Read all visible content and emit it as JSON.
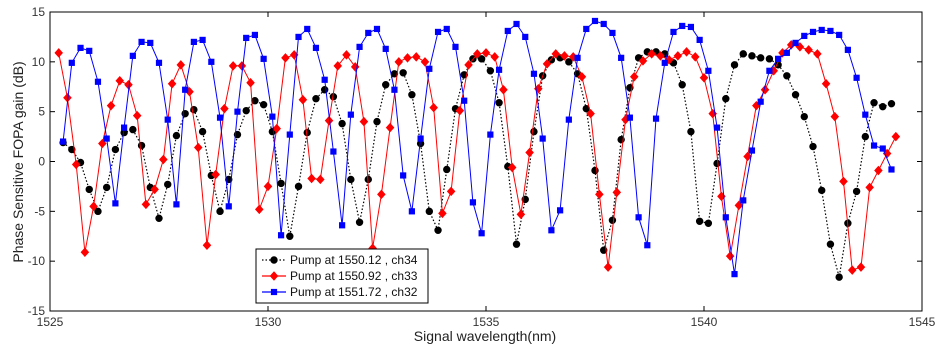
{
  "chart_data": {
    "type": "line",
    "title": "",
    "xlabel": "Signal wavelength(nm)",
    "ylabel": "Phase Sensitive FOPA gain (dB)",
    "xlim": [
      1525,
      1545
    ],
    "ylim": [
      -15,
      15
    ],
    "xticks": [
      1525,
      1530,
      1535,
      1540,
      1545
    ],
    "yticks": [
      -15,
      -10,
      -5,
      0,
      5,
      10,
      15
    ],
    "grid": false,
    "legend_position": "bottom-left",
    "series": [
      {
        "name": "Pump at 1550.12 , ch34",
        "color": "#000000",
        "line_style": "dotted",
        "marker": "circle",
        "x": [
          1525.3,
          1525.5,
          1525.7,
          1525.9,
          1526.1,
          1526.3,
          1526.5,
          1526.7,
          1526.9,
          1527.1,
          1527.3,
          1527.5,
          1527.7,
          1527.9,
          1528.1,
          1528.3,
          1528.5,
          1528.7,
          1528.9,
          1529.1,
          1529.3,
          1529.5,
          1529.7,
          1529.9,
          1530.1,
          1530.3,
          1530.5,
          1530.7,
          1530.9,
          1531.1,
          1531.3,
          1531.5,
          1531.7,
          1531.9,
          1532.1,
          1532.3,
          1532.5,
          1532.7,
          1532.9,
          1533.1,
          1533.3,
          1533.5,
          1533.7,
          1533.9,
          1534.1,
          1534.3,
          1534.5,
          1534.7,
          1534.9,
          1535.1,
          1535.3,
          1535.5,
          1535.7,
          1535.9,
          1536.1,
          1536.3,
          1536.5,
          1536.7,
          1536.9,
          1537.1,
          1537.3,
          1537.5,
          1537.7,
          1537.9,
          1538.1,
          1538.3,
          1538.5,
          1538.7,
          1538.9,
          1539.1,
          1539.3,
          1539.5,
          1539.7,
          1539.9,
          1540.1,
          1540.3,
          1540.5,
          1540.7,
          1540.9,
          1541.1,
          1541.3,
          1541.5,
          1541.7,
          1541.9,
          1542.1,
          1542.3,
          1542.5,
          1542.7,
          1542.9,
          1543.1,
          1543.3,
          1543.5,
          1543.7,
          1543.9,
          1544.1,
          1544.3
        ],
        "y": [
          1.9,
          1.2,
          -0.1,
          -2.8,
          -5.0,
          -2.6,
          1.2,
          2.9,
          3.2,
          1.6,
          -2.6,
          -5.7,
          -2.3,
          2.6,
          4.8,
          5.2,
          3.0,
          -1.4,
          -5.0,
          -1.8,
          2.7,
          5.1,
          6.1,
          5.7,
          3.0,
          -2.2,
          -7.5,
          -2.5,
          2.9,
          6.3,
          7.2,
          6.5,
          3.8,
          -1.8,
          -6.1,
          -1.8,
          4.0,
          7.7,
          8.8,
          8.9,
          6.7,
          1.8,
          -5.0,
          -6.9,
          -0.8,
          5.3,
          8.7,
          10.3,
          10.3,
          9.1,
          5.9,
          -0.5,
          -8.3,
          -3.8,
          3.0,
          8.6,
          10.2,
          10.4,
          10.0,
          8.8,
          5.3,
          -0.9,
          -8.9,
          -5.9,
          2.2,
          7.4,
          10.4,
          11.0,
          11.0,
          10.8,
          9.9,
          7.7,
          3.0,
          -6.0,
          -6.2,
          -0.2,
          6.3,
          9.7,
          10.8,
          10.6,
          10.4,
          10.3,
          9.7,
          8.6,
          6.7,
          4.5,
          1.5,
          -2.9,
          -8.3,
          -11.6,
          -6.2,
          -3.0,
          2.5,
          5.9,
          5.5,
          5.8
        ]
      },
      {
        "name": "Pump at 1550.92 , ch33",
        "color": "#ff0000",
        "line_style": "solid",
        "marker": "diamond",
        "x": [
          1525.2,
          1525.4,
          1525.6,
          1525.8,
          1526.0,
          1526.2,
          1526.4,
          1526.6,
          1526.8,
          1527.0,
          1527.2,
          1527.4,
          1527.6,
          1527.8,
          1528.0,
          1528.2,
          1528.4,
          1528.6,
          1528.8,
          1529.0,
          1529.2,
          1529.4,
          1529.6,
          1529.8,
          1530.0,
          1530.2,
          1530.4,
          1530.6,
          1530.8,
          1531.0,
          1531.2,
          1531.4,
          1531.6,
          1531.8,
          1532.0,
          1532.2,
          1532.4,
          1532.6,
          1532.8,
          1533.0,
          1533.2,
          1533.4,
          1533.6,
          1533.8,
          1534.0,
          1534.2,
          1534.4,
          1534.6,
          1534.8,
          1535.0,
          1535.2,
          1535.4,
          1535.6,
          1535.8,
          1536.0,
          1536.2,
          1536.4,
          1536.6,
          1536.8,
          1537.0,
          1537.2,
          1537.4,
          1537.6,
          1537.8,
          1538.0,
          1538.2,
          1538.4,
          1538.6,
          1538.8,
          1539.0,
          1539.2,
          1539.4,
          1539.6,
          1539.8,
          1540.0,
          1540.2,
          1540.4,
          1540.6,
          1540.8,
          1541.0,
          1541.2,
          1541.4,
          1541.6,
          1541.8,
          1542.0,
          1542.2,
          1542.4,
          1542.6,
          1542.8,
          1543.0,
          1543.2,
          1543.4,
          1543.6,
          1543.8,
          1544.0,
          1544.2,
          1544.4
        ],
        "y": [
          10.9,
          6.4,
          -0.3,
          -9.1,
          -4.5,
          1.8,
          5.6,
          8.1,
          7.7,
          4.6,
          -4.3,
          -2.8,
          0.2,
          7.8,
          9.7,
          7.0,
          1.4,
          -8.4,
          -1.3,
          5.3,
          9.6,
          9.6,
          7.9,
          -4.8,
          -2.5,
          3.3,
          10.4,
          10.7,
          6.2,
          -1.7,
          -1.8,
          4.1,
          9.6,
          10.7,
          9.5,
          4.0,
          -8.7,
          -3.3,
          3.4,
          10.0,
          10.4,
          10.5,
          10.0,
          5.4,
          -5.2,
          -3.0,
          5.1,
          9.7,
          10.8,
          10.9,
          10.5,
          7.2,
          -0.6,
          -5.3,
          0.9,
          7.3,
          9.8,
          10.8,
          10.6,
          10.5,
          8.5,
          4.8,
          -3.3,
          -10.6,
          -3.1,
          4.2,
          8.5,
          10.1,
          10.8,
          10.6,
          10.2,
          10.6,
          11.0,
          10.5,
          8.4,
          4.8,
          -3.5,
          -9.5,
          -4.4,
          0.5,
          5.6,
          7.2,
          9.1,
          10.9,
          11.7,
          11.5,
          11.2,
          10.8,
          7.8,
          4.5,
          -2.0,
          -10.9,
          -10.6,
          -2.6,
          -0.9,
          0.8,
          2.5
        ]
      },
      {
        "name": "Pump at 1551.72 , ch32",
        "color": "#0000ff",
        "line_style": "solid",
        "marker": "square",
        "x": [
          1525.3,
          1525.5,
          1525.7,
          1525.9,
          1526.1,
          1526.3,
          1526.5,
          1526.7,
          1526.9,
          1527.1,
          1527.3,
          1527.5,
          1527.7,
          1527.9,
          1528.1,
          1528.3,
          1528.5,
          1528.7,
          1528.9,
          1529.1,
          1529.3,
          1529.5,
          1529.7,
          1529.9,
          1530.1,
          1530.3,
          1530.5,
          1530.7,
          1530.9,
          1531.1,
          1531.3,
          1531.5,
          1531.7,
          1531.9,
          1532.1,
          1532.3,
          1532.5,
          1532.7,
          1532.9,
          1533.1,
          1533.3,
          1533.5,
          1533.7,
          1533.9,
          1534.1,
          1534.3,
          1534.5,
          1534.7,
          1534.9,
          1535.1,
          1535.3,
          1535.5,
          1535.7,
          1535.9,
          1536.1,
          1536.3,
          1536.5,
          1536.7,
          1536.9,
          1537.1,
          1537.3,
          1537.5,
          1537.7,
          1537.9,
          1538.1,
          1538.3,
          1538.5,
          1538.7,
          1538.9,
          1539.1,
          1539.3,
          1539.5,
          1539.7,
          1539.9,
          1540.1,
          1540.3,
          1540.5,
          1540.7,
          1540.9,
          1541.1,
          1541.3,
          1541.5,
          1541.7,
          1541.9,
          1542.1,
          1542.3,
          1542.5,
          1542.7,
          1542.9,
          1543.1,
          1543.3,
          1543.5,
          1543.7,
          1543.9,
          1544.1,
          1544.3
        ],
        "y": [
          2.0,
          9.9,
          11.4,
          11.1,
          8.0,
          2.3,
          -4.2,
          3.4,
          10.6,
          12.0,
          11.9,
          9.9,
          4.2,
          -4.3,
          7.2,
          12.0,
          12.2,
          10.0,
          4.4,
          -4.5,
          5.0,
          12.4,
          12.7,
          10.3,
          4.5,
          -7.4,
          2.7,
          12.5,
          13.3,
          11.4,
          8.2,
          1.0,
          -6.4,
          4.7,
          11.5,
          12.9,
          13.3,
          11.3,
          7.2,
          -1.4,
          -5.0,
          2.3,
          9.3,
          13.0,
          13.3,
          11.5,
          6.1,
          -4.1,
          -7.2,
          2.7,
          9.2,
          13.1,
          13.8,
          12.5,
          8.8,
          2.3,
          -6.9,
          -4.9,
          4.2,
          10.4,
          13.3,
          14.1,
          13.8,
          12.9,
          10.4,
          4.4,
          -5.6,
          -8.4,
          4.3,
          9.9,
          13.0,
          13.6,
          13.5,
          12.2,
          9.1,
          3.4,
          -5.6,
          -11.3,
          -3.9,
          1.1,
          6.0,
          9.1,
          10.3,
          10.9,
          11.9,
          12.6,
          13.0,
          13.2,
          13.1,
          12.7,
          11.2,
          8.4,
          4.7,
          1.6,
          1.3,
          -0.8
        ]
      }
    ]
  }
}
